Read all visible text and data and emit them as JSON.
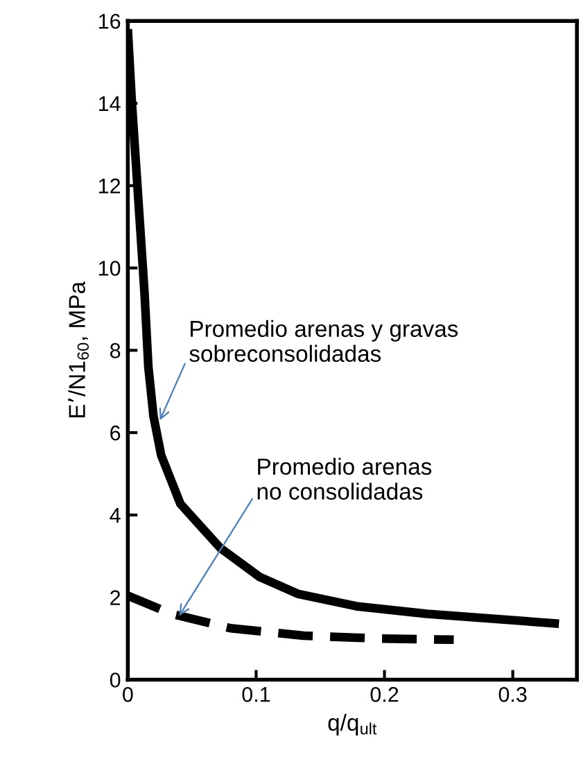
{
  "chart_data": {
    "type": "line",
    "xlabel": "q/q$_{ult}$",
    "ylabel": "E’/N1$_{60}$, MPa",
    "xlim": [
      0,
      0.35
    ],
    "xticks": [
      0,
      0.1,
      0.2,
      0.3
    ],
    "ylim": [
      0,
      16
    ],
    "yticks": [
      0,
      2,
      4,
      6,
      8,
      10,
      12,
      14,
      16
    ],
    "grid": false,
    "legend": false,
    "marker": "none",
    "series": [
      {
        "color": "#000000",
        "line_style": "solid",
        "x": [
          0,
          0.003,
          0.008,
          0.013,
          0.016,
          0.02,
          0.026,
          0.041,
          0.072,
          0.103,
          0.133,
          0.179,
          0.233,
          0.336
        ],
        "values": [
          15.8,
          14.1,
          11.75,
          9.4,
          7.6,
          6.4,
          5.45,
          4.27,
          3.2,
          2.49,
          2.08,
          1.78,
          1.6,
          1.36
        ]
      },
      {
        "color": "#000000",
        "line_style": "dashed",
        "x": [
          0,
          0.034,
          0.08,
          0.137,
          0.195,
          0.254
        ],
        "values": [
          2.04,
          1.6,
          1.25,
          1.07,
          1.0,
          0.97
        ]
      }
    ],
    "annotations": [
      {
        "text": "Promedio arenas y gravas\nsobreconsolidadas",
        "x": 0.025,
        "y": 6.3
      },
      {
        "text": "Promedio arenas\nno consolidadas",
        "x": 0.04,
        "y": 1.55
      }
    ]
  }
}
